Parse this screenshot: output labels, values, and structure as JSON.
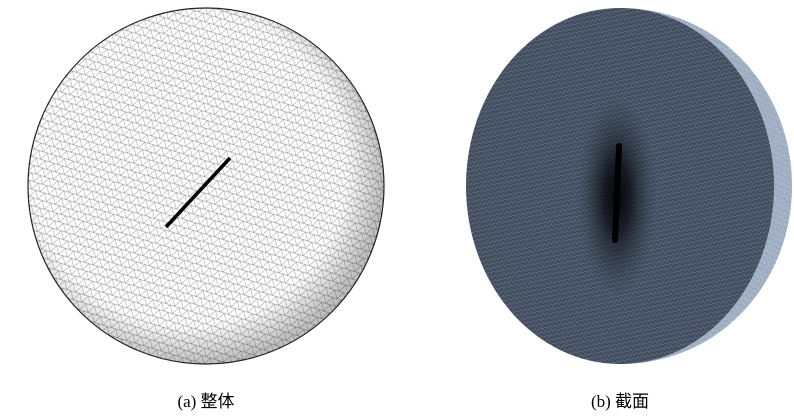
{
  "figure": {
    "panels": [
      {
        "caption": "(a) 整体"
      },
      {
        "caption": "(b) 截面"
      }
    ]
  }
}
